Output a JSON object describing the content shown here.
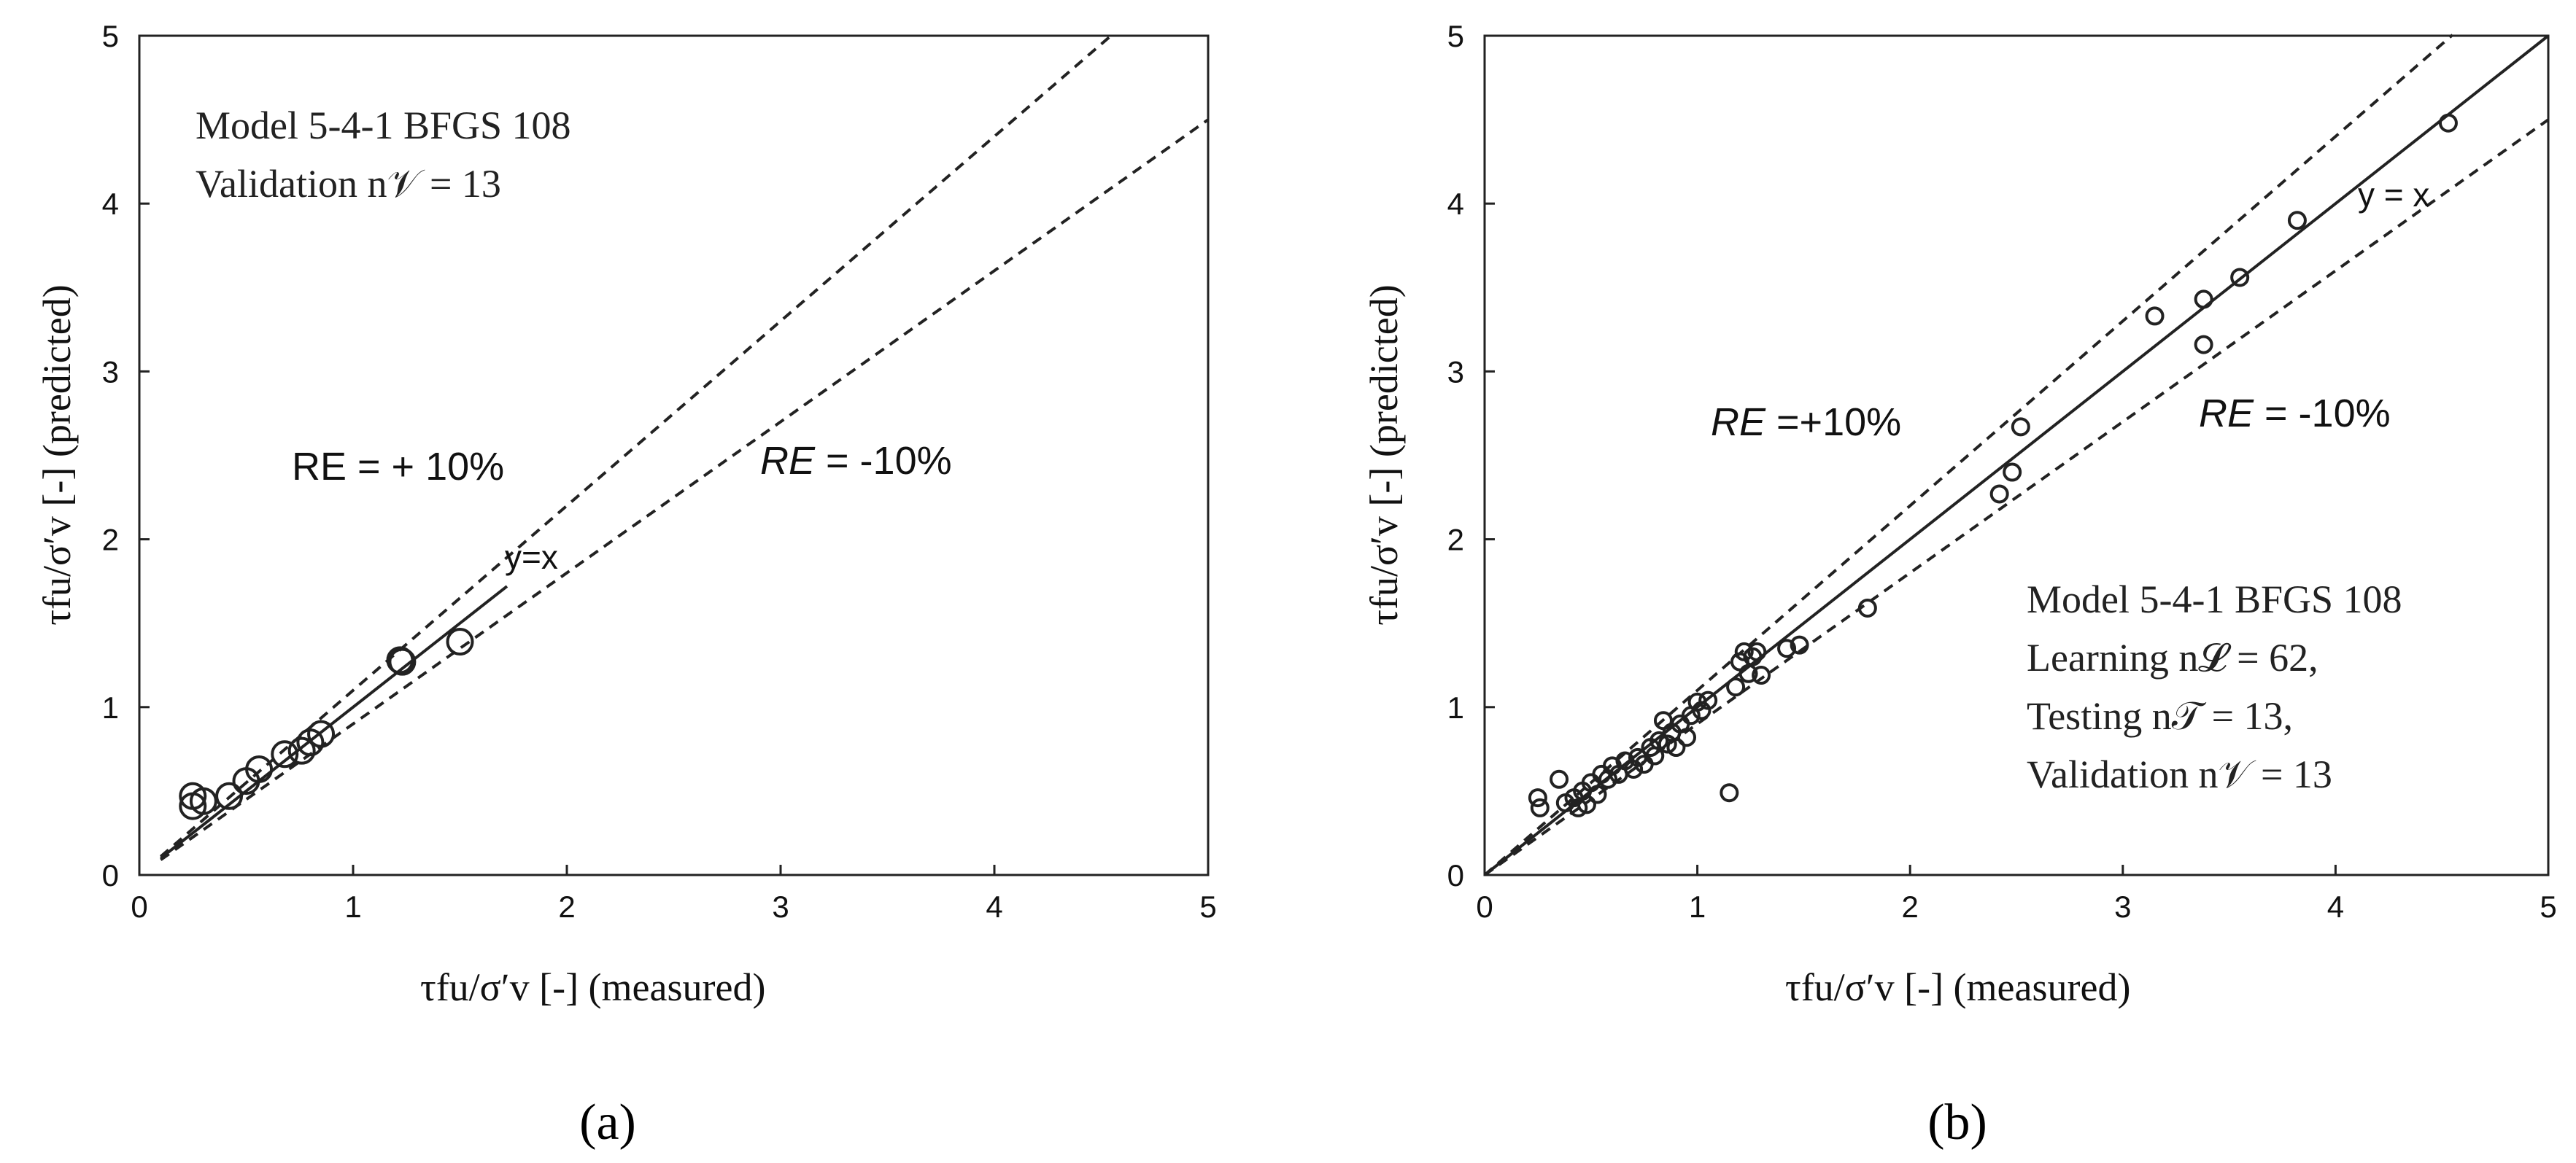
{
  "chart_data": [
    {
      "type": "scatter",
      "panel_label": "(a)",
      "xlabel": "τfu/σ′v [-] (measured)",
      "ylabel": "τfu/σ′v [-] (predicted)",
      "xlim": [
        0,
        5
      ],
      "ylim": [
        0,
        5
      ],
      "ticks": [
        0,
        1,
        2,
        3,
        4,
        5
      ],
      "grid": false,
      "annotations": [
        "Model 5-4-1 BFGS 108",
        "Validation n𝒱 = 13"
      ],
      "re_plus_label": "RE = + 10%",
      "re_minus_label_italic": "RE",
      "re_minus_label_rest": " = -10%",
      "yx_label": "y=x",
      "lines": [
        {
          "name": "y=x",
          "style": "solid",
          "x": [
            0.1,
            1.72
          ],
          "slope": 1.0
        },
        {
          "name": "RE=+10%",
          "style": "dashed",
          "x": [
            0.1,
            4.55
          ],
          "slope": 1.1
        },
        {
          "name": "RE=-10%",
          "style": "dashed",
          "x": [
            0.1,
            5.0
          ],
          "slope": 0.9
        }
      ],
      "points": [
        {
          "x": 0.25,
          "y": 0.47
        },
        {
          "x": 0.25,
          "y": 0.41
        },
        {
          "x": 0.42,
          "y": 0.47
        },
        {
          "x": 0.5,
          "y": 0.56
        },
        {
          "x": 0.56,
          "y": 0.63
        },
        {
          "x": 0.68,
          "y": 0.72
        },
        {
          "x": 0.76,
          "y": 0.74
        },
        {
          "x": 0.8,
          "y": 0.79
        },
        {
          "x": 0.85,
          "y": 0.84
        },
        {
          "x": 1.22,
          "y": 1.28
        },
        {
          "x": 1.23,
          "y": 1.27
        },
        {
          "x": 1.5,
          "y": 1.39
        },
        {
          "x": 0.3,
          "y": 0.44
        }
      ]
    },
    {
      "type": "scatter",
      "panel_label": "(b)",
      "xlabel": "τfu/σ′v [-] (measured)",
      "ylabel": "τfu/σ′v [-] (predicted)",
      "xlim": [
        0,
        5
      ],
      "ylim": [
        0,
        5
      ],
      "ticks": [
        0,
        1,
        2,
        3,
        4,
        5
      ],
      "grid": false,
      "annotations": [
        "Model 5-4-1 BFGS 108",
        "Learning n𝓛 = 62,",
        "Testing n𝒯 = 13,",
        "Validation n𝒱 = 13"
      ],
      "re_plus_label_italic": "RE",
      "re_plus_label_rest": " =+10%",
      "re_minus_label_italic": "RE",
      "re_minus_label_rest": " = -10%",
      "yx_label": "y = x",
      "lines": [
        {
          "name": "y=x",
          "style": "solid",
          "x": [
            0.0,
            5.0
          ],
          "slope": 1.0
        },
        {
          "name": "RE=+10%",
          "style": "dashed",
          "x": [
            0.0,
            4.55
          ],
          "slope": 1.1
        },
        {
          "name": "RE=-10%",
          "style": "dashed",
          "x": [
            0.0,
            5.0
          ],
          "slope": 0.9
        }
      ],
      "points": [
        {
          "x": 0.25,
          "y": 0.46
        },
        {
          "x": 0.26,
          "y": 0.4
        },
        {
          "x": 0.35,
          "y": 0.57
        },
        {
          "x": 0.38,
          "y": 0.43
        },
        {
          "x": 0.42,
          "y": 0.46
        },
        {
          "x": 0.44,
          "y": 0.4
        },
        {
          "x": 0.46,
          "y": 0.5
        },
        {
          "x": 0.48,
          "y": 0.42
        },
        {
          "x": 0.5,
          "y": 0.55
        },
        {
          "x": 0.53,
          "y": 0.48
        },
        {
          "x": 0.55,
          "y": 0.6
        },
        {
          "x": 0.58,
          "y": 0.57
        },
        {
          "x": 0.6,
          "y": 0.65
        },
        {
          "x": 0.63,
          "y": 0.6
        },
        {
          "x": 0.66,
          "y": 0.68
        },
        {
          "x": 0.7,
          "y": 0.63
        },
        {
          "x": 0.72,
          "y": 0.7
        },
        {
          "x": 0.75,
          "y": 0.66
        },
        {
          "x": 0.78,
          "y": 0.76
        },
        {
          "x": 0.8,
          "y": 0.71
        },
        {
          "x": 0.82,
          "y": 0.8
        },
        {
          "x": 0.84,
          "y": 0.92
        },
        {
          "x": 0.86,
          "y": 0.78
        },
        {
          "x": 0.88,
          "y": 0.85
        },
        {
          "x": 0.9,
          "y": 0.76
        },
        {
          "x": 0.92,
          "y": 0.9
        },
        {
          "x": 0.95,
          "y": 0.82
        },
        {
          "x": 0.97,
          "y": 0.95
        },
        {
          "x": 1.0,
          "y": 1.03
        },
        {
          "x": 1.02,
          "y": 0.98
        },
        {
          "x": 1.05,
          "y": 1.04
        },
        {
          "x": 1.15,
          "y": 0.49
        },
        {
          "x": 1.18,
          "y": 1.12
        },
        {
          "x": 1.2,
          "y": 1.27
        },
        {
          "x": 1.22,
          "y": 1.33
        },
        {
          "x": 1.24,
          "y": 1.2
        },
        {
          "x": 1.26,
          "y": 1.3
        },
        {
          "x": 1.28,
          "y": 1.33
        },
        {
          "x": 1.3,
          "y": 1.19
        },
        {
          "x": 1.42,
          "y": 1.35
        },
        {
          "x": 1.48,
          "y": 1.37
        },
        {
          "x": 1.8,
          "y": 1.59
        },
        {
          "x": 2.42,
          "y": 2.27
        },
        {
          "x": 2.48,
          "y": 2.4
        },
        {
          "x": 2.52,
          "y": 2.67
        },
        {
          "x": 3.15,
          "y": 3.33
        },
        {
          "x": 3.38,
          "y": 3.43
        },
        {
          "x": 3.38,
          "y": 3.16
        },
        {
          "x": 3.55,
          "y": 3.56
        },
        {
          "x": 3.82,
          "y": 3.9
        },
        {
          "x": 4.53,
          "y": 4.48
        }
      ]
    }
  ]
}
